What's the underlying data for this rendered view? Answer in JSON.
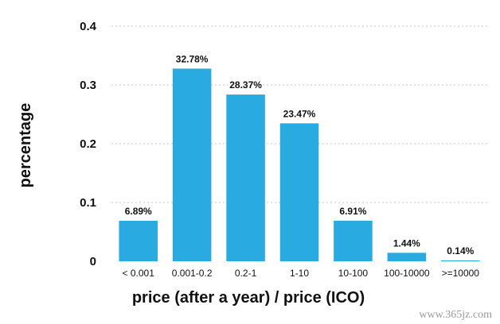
{
  "chart_data": {
    "type": "bar",
    "categories": [
      "< 0.001",
      "0.001-0.2",
      "0.2-1",
      "1-10",
      "10-100",
      "100-10000",
      ">=10000"
    ],
    "values": [
      0.0689,
      0.3278,
      0.2837,
      0.2347,
      0.0691,
      0.0144,
      0.0014
    ],
    "data_labels": [
      "6.89%",
      "32.78%",
      "28.37%",
      "23.47%",
      "6.91%",
      "1.44%",
      "0.14%"
    ],
    "xlabel": "price (after a year) / price (ICO)",
    "ylabel": "percentage",
    "ylim": [
      0,
      0.4
    ],
    "yticks": [
      0,
      0.1,
      0.2,
      0.3,
      0.4
    ],
    "ytick_labels": [
      "0",
      "0.1",
      "0.2",
      "0.3",
      "0.4"
    ],
    "grid": true,
    "bar_color": "#29ABE2"
  },
  "watermark": "www.365jz.com"
}
